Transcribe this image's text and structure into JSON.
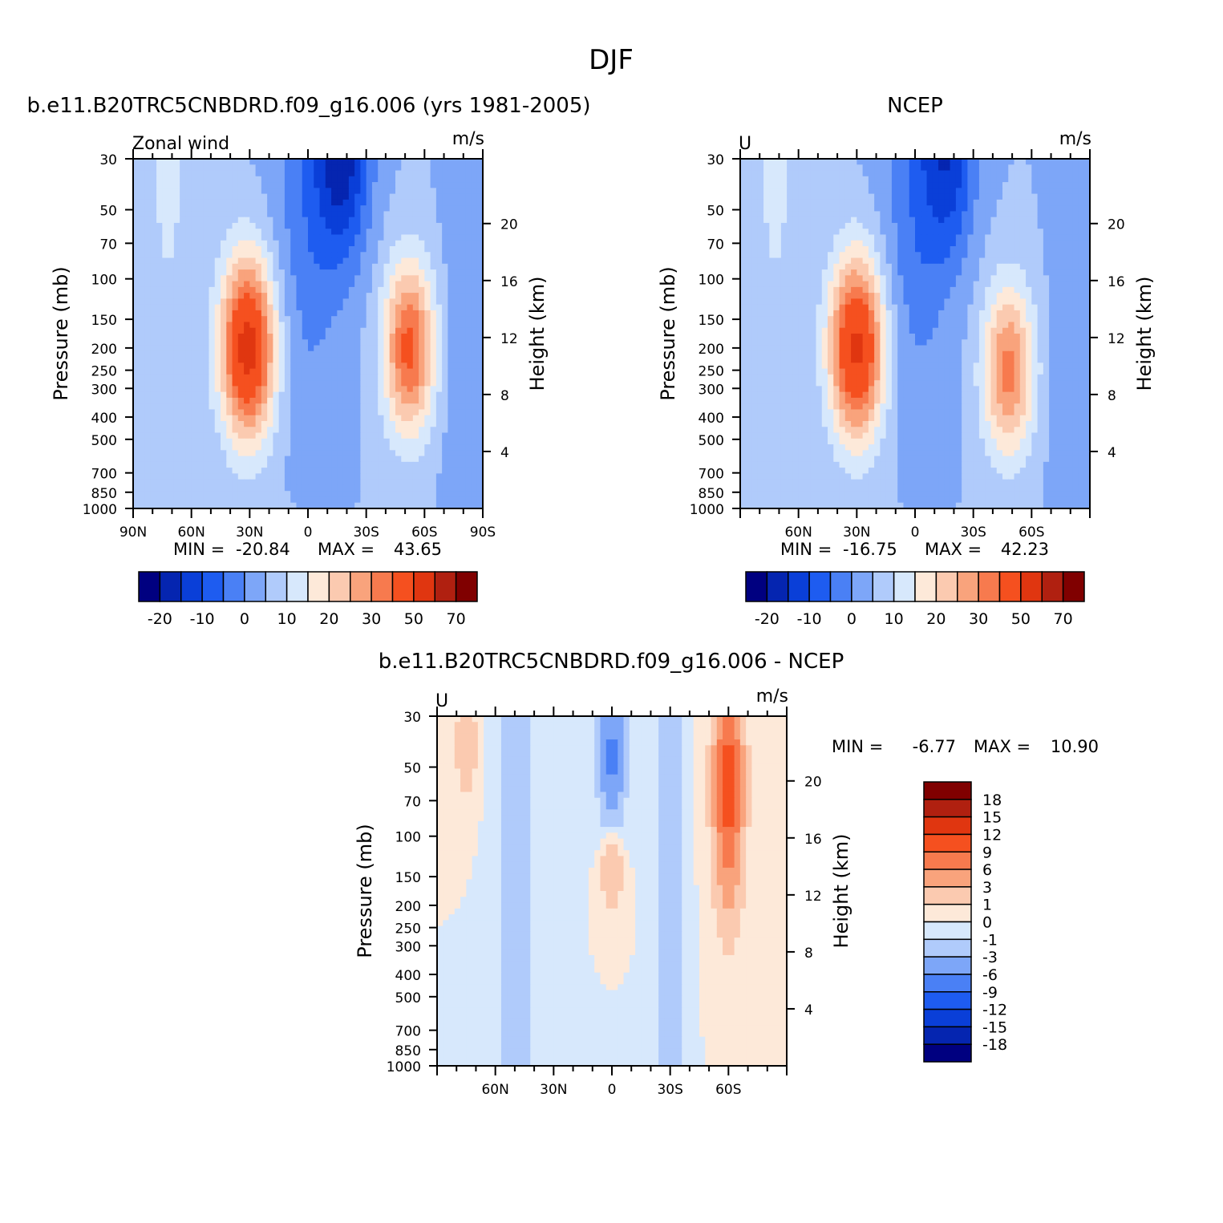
{
  "figure": {
    "title": "DJF"
  },
  "colors": {
    "full_field": [
      "#000080",
      "#0525b0",
      "#0a3fd8",
      "#1e5cf0",
      "#4a80f5",
      "#7da6f8",
      "#b0cbfb",
      "#d7e8fc",
      "#fde9d9",
      "#fbcab0",
      "#f9a37c",
      "#f77a4e",
      "#f5501f",
      "#e03610",
      "#b02010",
      "#800000"
    ],
    "difference": [
      "#000080",
      "#0525b0",
      "#0a3fd8",
      "#1e5cf0",
      "#4a80f5",
      "#7da6f8",
      "#b0cbfb",
      "#d7e8fc",
      "#fde9d9",
      "#fbcab0",
      "#f9a37c",
      "#f77a4e",
      "#f5501f",
      "#e03610",
      "#b02010",
      "#800000"
    ]
  },
  "chart_data": [
    {
      "type": "heatmap",
      "panel_title": "b.e11.B20TRC5CNBDRD.f09_g16.006 (yrs 1981-2005)",
      "left_label": "Zonal wind",
      "units": "m/s",
      "ylabel": "Pressure (mb)",
      "y2label": "Height (km)",
      "x_ticklabels": [
        "90N",
        "60N",
        "30N",
        "0",
        "30S",
        "60S",
        "90S"
      ],
      "x_ticks": [
        90,
        60,
        30,
        0,
        -30,
        -60,
        -90
      ],
      "xlim": [
        90,
        -90
      ],
      "y_ticklabels": [
        "30",
        "50",
        "70",
        "100",
        "150",
        "200",
        "250",
        "300",
        "400",
        "500",
        "700",
        "850",
        "1000"
      ],
      "y_ticks": [
        30,
        50,
        70,
        100,
        150,
        200,
        250,
        300,
        400,
        500,
        700,
        850,
        1000
      ],
      "ylim": [
        1000,
        30
      ],
      "yscale": "log",
      "y2_ticklabels": [
        "20",
        "16",
        "12",
        "8",
        "4"
      ],
      "y2_ticks_km": [
        20,
        16,
        12,
        8,
        4
      ],
      "min_label": "MIN =",
      "min_value": "-20.84",
      "max_label": "MAX =",
      "max_value": "43.65",
      "colorbar_labels": [
        "-20",
        "-10",
        "0",
        "10",
        "20",
        "30",
        "50",
        "70"
      ],
      "colorbar_levels": [
        -25,
        -20,
        -15,
        -10,
        -5,
        0,
        5,
        10,
        15,
        20,
        25,
        30,
        40,
        50,
        60,
        70
      ],
      "features": [
        {
          "kind": "westerly-jet",
          "lat": 31,
          "p": 200,
          "peak": 43.65
        },
        {
          "kind": "westerly-jet",
          "lat": -52,
          "p": 200,
          "peak": 32
        },
        {
          "kind": "easterly-min",
          "lat": -18,
          "p": 30,
          "peak": -20.84
        }
      ]
    },
    {
      "type": "heatmap",
      "panel_title": "NCEP",
      "left_label": "U",
      "units": "m/s",
      "ylabel": "Pressure (mb)",
      "y2label": "Height (km)",
      "x_ticklabels": [
        "60N",
        "30N",
        "0",
        "30S",
        "60S"
      ],
      "x_ticks": [
        60,
        30,
        0,
        -30,
        -60
      ],
      "xlim": [
        90,
        -90
      ],
      "y_ticklabels": [
        "30",
        "50",
        "70",
        "100",
        "150",
        "200",
        "250",
        "300",
        "400",
        "500",
        "700",
        "850",
        "1000"
      ],
      "y_ticks": [
        30,
        50,
        70,
        100,
        150,
        200,
        250,
        300,
        400,
        500,
        700,
        850,
        1000
      ],
      "ylim": [
        1000,
        30
      ],
      "yscale": "log",
      "y2_ticklabels": [
        "20",
        "16",
        "12",
        "8",
        "4"
      ],
      "y2_ticks_km": [
        20,
        16,
        12,
        8,
        4
      ],
      "min_label": "MIN =",
      "min_value": "-16.75",
      "max_label": "MAX =",
      "max_value": "42.23",
      "colorbar_labels": [
        "-20",
        "-10",
        "0",
        "10",
        "20",
        "30",
        "50",
        "70"
      ],
      "colorbar_levels": [
        -25,
        -20,
        -15,
        -10,
        -5,
        0,
        5,
        10,
        15,
        20,
        25,
        30,
        40,
        50,
        60,
        70
      ],
      "features": [
        {
          "kind": "westerly-jet",
          "lat": 30,
          "p": 200,
          "peak": 42.23
        },
        {
          "kind": "westerly-jet",
          "lat": -48,
          "p": 250,
          "peak": 27
        },
        {
          "kind": "easterly-min",
          "lat": -17,
          "p": 30,
          "peak": -16.75
        }
      ]
    },
    {
      "type": "heatmap",
      "panel_title": "b.e11.B20TRC5CNBDRD.f09_g16.006 - NCEP",
      "left_label": "U",
      "units": "m/s",
      "ylabel": "Pressure (mb)",
      "y2label": "Height (km)",
      "x_ticklabels": [
        "60N",
        "30N",
        "0",
        "30S",
        "60S"
      ],
      "x_ticks": [
        60,
        30,
        0,
        -30,
        -60
      ],
      "xlim": [
        90,
        -90
      ],
      "y_ticklabels": [
        "30",
        "50",
        "70",
        "100",
        "150",
        "200",
        "250",
        "300",
        "400",
        "500",
        "700",
        "850",
        "1000"
      ],
      "y_ticks": [
        30,
        50,
        70,
        100,
        150,
        200,
        250,
        300,
        400,
        500,
        700,
        850,
        1000
      ],
      "ylim": [
        1000,
        30
      ],
      "yscale": "log",
      "y2_ticklabels": [
        "20",
        "16",
        "12",
        "8",
        "4"
      ],
      "y2_ticks_km": [
        20,
        16,
        12,
        8,
        4
      ],
      "min_label": "MIN =",
      "min_value": "-6.77",
      "max_label": "MAX =",
      "max_value": "10.90",
      "colorbar_labels": [
        "18",
        "15",
        "12",
        "9",
        "6",
        "3",
        "1",
        "0",
        "-1",
        "-3",
        "-6",
        "-9",
        "-12",
        "-15",
        "-18"
      ],
      "colorbar_levels": [
        -18,
        -15,
        -12,
        -9,
        -6,
        -3,
        -1,
        0,
        1,
        3,
        6,
        9,
        12,
        15,
        18
      ],
      "features": [
        {
          "kind": "positive-max",
          "lat": -60,
          "p": 60,
          "peak": 10.9
        },
        {
          "kind": "negative-min",
          "lat": 0,
          "p": 45,
          "peak": -6.77
        },
        {
          "kind": "positive",
          "lat": 0,
          "p": 130,
          "peak": 4
        },
        {
          "kind": "positive",
          "lat": 75,
          "p": 40,
          "peak": 3
        }
      ]
    }
  ]
}
